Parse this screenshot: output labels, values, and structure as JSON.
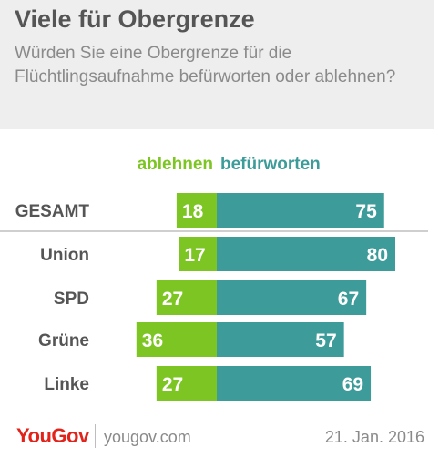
{
  "title": "Viele für Obergrenze",
  "subtitle": "Würden Sie eine Obergrenze für die Flüchtlingsaufnahme befürworten oder ablehnen?",
  "footer": {
    "brand": "YouGov",
    "site": "yougov.com",
    "date": "21. Jan. 2016"
  },
  "colors": {
    "ablehnen": "#7cc522",
    "befuerworten": "#3d9c9a",
    "label": "#555555",
    "header_bg": "#eeeeee"
  },
  "chart_data": {
    "type": "bar",
    "orientation": "horizontal",
    "stacked": "diverging",
    "categories": [
      "GESAMT",
      "Union",
      "SPD",
      "Grüne",
      "Linke"
    ],
    "series": [
      {
        "name": "ablehnen",
        "values": [
          18,
          17,
          27,
          36,
          27
        ]
      },
      {
        "name": "befürworten",
        "values": [
          75,
          80,
          67,
          57,
          69
        ]
      }
    ]
  }
}
